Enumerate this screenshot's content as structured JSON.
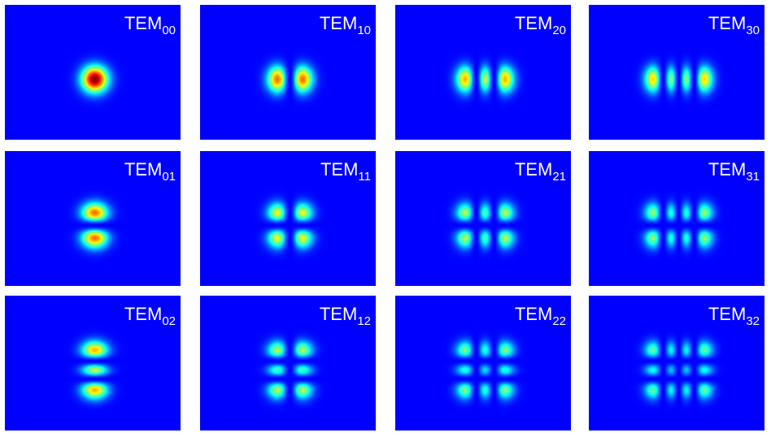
{
  "label_prefix": "TEM",
  "colormap": "jet",
  "background_color": "#0000a4",
  "label_color": "#ffffff",
  "modes": [
    {
      "m": 0,
      "n": 0,
      "subscript": "00"
    },
    {
      "m": 1,
      "n": 0,
      "subscript": "10"
    },
    {
      "m": 2,
      "n": 0,
      "subscript": "20"
    },
    {
      "m": 3,
      "n": 0,
      "subscript": "30"
    },
    {
      "m": 0,
      "n": 1,
      "subscript": "01"
    },
    {
      "m": 1,
      "n": 1,
      "subscript": "11"
    },
    {
      "m": 2,
      "n": 1,
      "subscript": "21"
    },
    {
      "m": 3,
      "n": 1,
      "subscript": "31"
    },
    {
      "m": 0,
      "n": 2,
      "subscript": "02"
    },
    {
      "m": 1,
      "n": 2,
      "subscript": "12"
    },
    {
      "m": 2,
      "n": 2,
      "subscript": "22"
    },
    {
      "m": 3,
      "n": 2,
      "subscript": "32"
    }
  ]
}
